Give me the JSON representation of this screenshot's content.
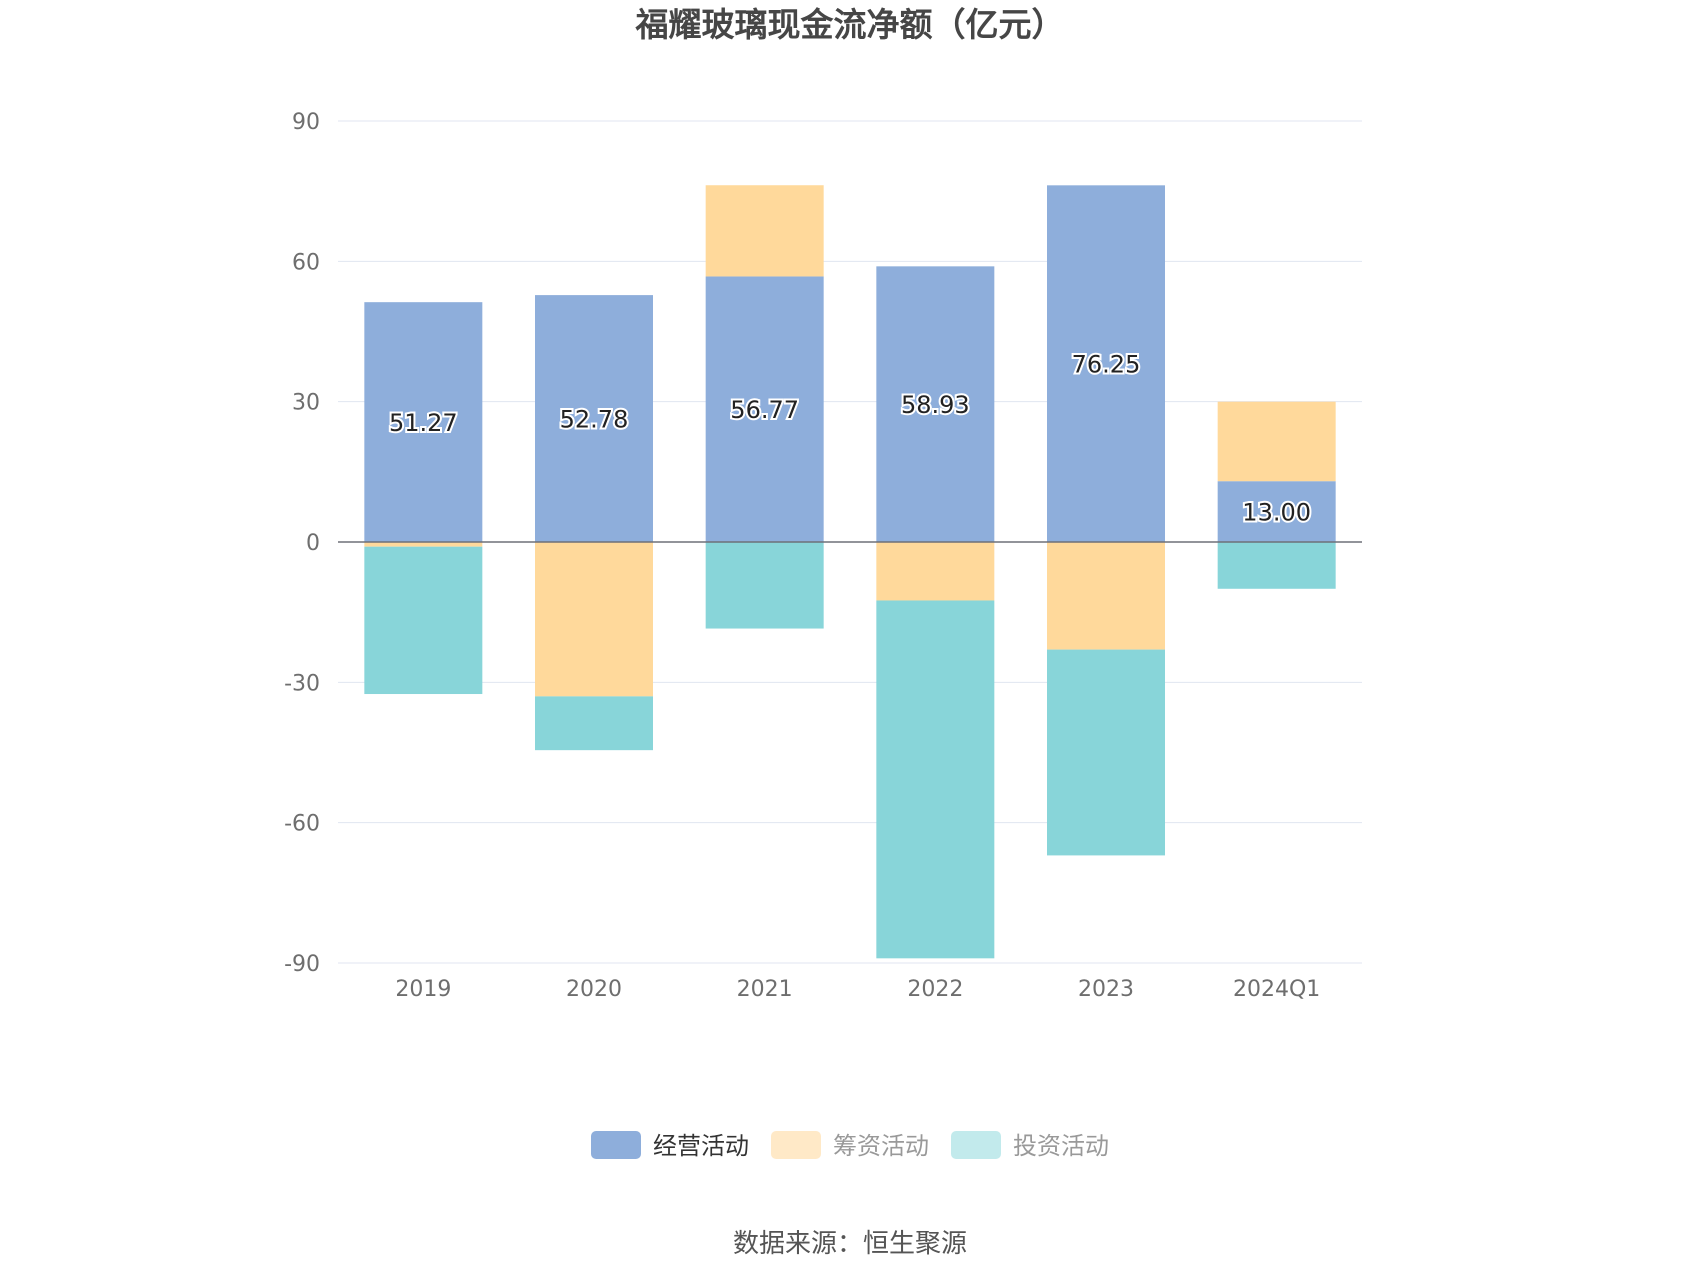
{
  "chart_data": {
    "type": "bar",
    "stacked": true,
    "title": "福耀玻璃现金流净额（亿元）",
    "categories": [
      "2019",
      "2020",
      "2021",
      "2022",
      "2023",
      "2024Q1"
    ],
    "ylim": [
      -90,
      90
    ],
    "yticks": [
      90,
      60,
      30,
      0,
      -30,
      -60,
      -90
    ],
    "grid": true,
    "legend_position": "bottom",
    "series": [
      {
        "name": "经营活动",
        "color": "#8eaedb",
        "values": [
          51.27,
          52.78,
          56.77,
          58.93,
          76.25,
          13.0
        ],
        "labels": [
          "51.27",
          "52.78",
          "56.77",
          "58.93",
          "76.25",
          "13.00"
        ]
      },
      {
        "name": "筹资活动",
        "color": "#ffd99b",
        "values": [
          -1.0,
          -33.0,
          19.5,
          -12.5,
          -23.0,
          17.0
        ]
      },
      {
        "name": "投资活动",
        "color": "#88d5d9",
        "values": [
          -31.5,
          -11.5,
          -18.5,
          -76.5,
          -44.0,
          -10.0
        ]
      }
    ],
    "legend": [
      {
        "name": "经营活动",
        "swatch": "#8eaedb",
        "text_color": "#333333"
      },
      {
        "name": "筹资活动",
        "swatch": "#ffe9c7",
        "text_color": "#999999"
      },
      {
        "name": "投资活动",
        "swatch": "#c2eaec",
        "text_color": "#999999"
      }
    ]
  },
  "source": "数据来源：恒生聚源"
}
